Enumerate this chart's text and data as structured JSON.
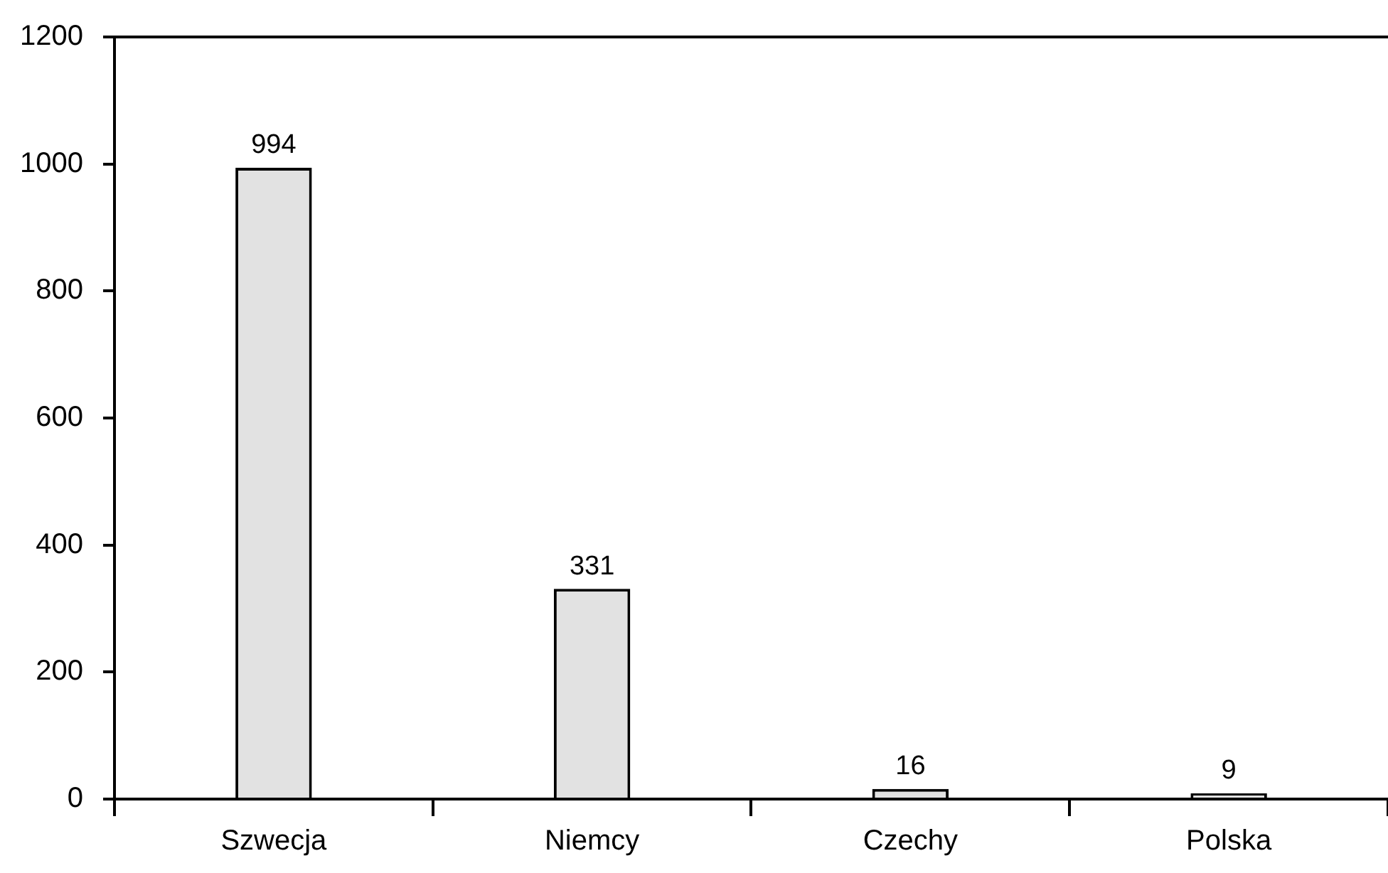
{
  "chart_data": {
    "type": "bar",
    "categories": [
      "Szwecja",
      "Niemcy",
      "Czechy",
      "Polska"
    ],
    "values": [
      994,
      331,
      16,
      9
    ],
    "color": "#e2e2e2",
    "ylim": [
      0,
      1200
    ],
    "yticks": [
      0,
      200,
      400,
      600,
      800,
      1000,
      1200
    ],
    "data_labels": true,
    "grid": false,
    "legend": false
  }
}
